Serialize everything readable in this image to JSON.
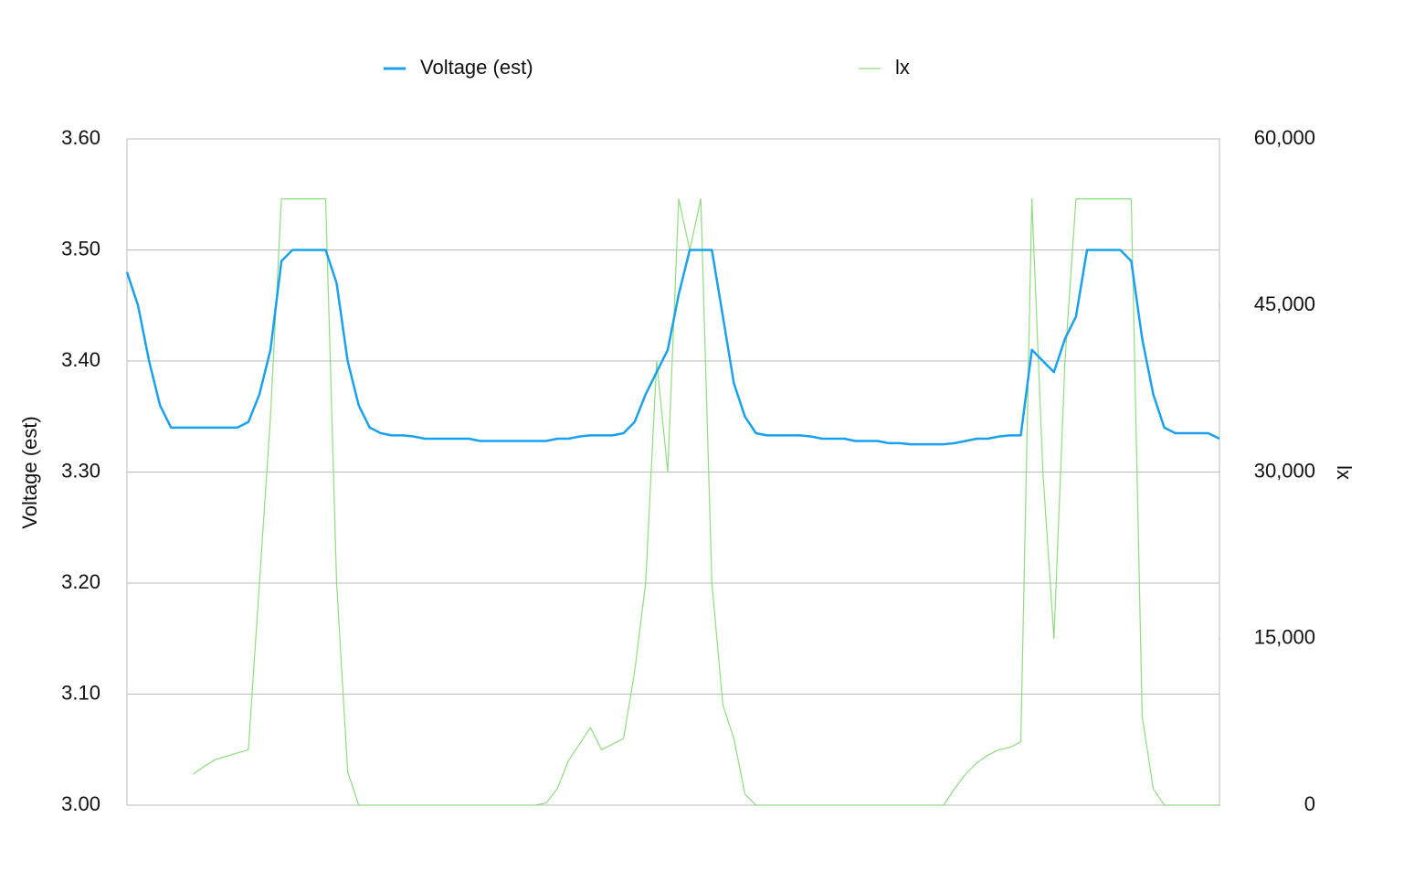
{
  "chart_data": {
    "type": "line",
    "y_label": "Voltage (est)",
    "y2_label": "lx",
    "categories": [
      null,
      null,
      null,
      null,
      null,
      null,
      null,
      null,
      null,
      null,
      null,
      null,
      null,
      null,
      null,
      null,
      null,
      null,
      null,
      null,
      null,
      null,
      null,
      null,
      null,
      null,
      null,
      null,
      null,
      null,
      null,
      null,
      null,
      null,
      null,
      null,
      null,
      null,
      null,
      null,
      null,
      null,
      null,
      null,
      null,
      null,
      null,
      null,
      null,
      null,
      null,
      null,
      null,
      null,
      null,
      null,
      null,
      null,
      null,
      null,
      null,
      null,
      null,
      null,
      null,
      null,
      null,
      null,
      null,
      null,
      null,
      null,
      null,
      null,
      null,
      null,
      null,
      null,
      null,
      null,
      null,
      null,
      null,
      null,
      null,
      null,
      null,
      null,
      null,
      null,
      null,
      null,
      null,
      null,
      null,
      null,
      null,
      null,
      null,
      null
    ],
    "series": [
      {
        "name": "Voltage (est)",
        "color": "#1aa1ee",
        "values": [
          3.48,
          3.45,
          3.4,
          3.36,
          3.34,
          3.34,
          3.34,
          3.34,
          3.34,
          3.34,
          3.34,
          3.345,
          3.37,
          3.41,
          3.49,
          3.5,
          3.5,
          3.5,
          3.5,
          3.47,
          3.4,
          3.36,
          3.34,
          3.335,
          3.333,
          3.333,
          3.332,
          3.33,
          3.33,
          3.33,
          3.33,
          3.33,
          3.328,
          3.328,
          3.328,
          3.328,
          3.328,
          3.328,
          3.328,
          3.33,
          3.33,
          3.332,
          3.333,
          3.333,
          3.333,
          3.335,
          3.345,
          3.37,
          3.39,
          3.41,
          3.46,
          3.5,
          3.5,
          3.5,
          3.44,
          3.38,
          3.35,
          3.335,
          3.333,
          3.333,
          3.333,
          3.333,
          3.332,
          3.33,
          3.33,
          3.33,
          3.328,
          3.328,
          3.328,
          3.326,
          3.326,
          3.325,
          3.325,
          3.325,
          3.325,
          3.326,
          3.328,
          3.33,
          3.33,
          3.332,
          3.333,
          3.333,
          3.41,
          3.4,
          3.39,
          3.42,
          3.44,
          3.5,
          3.5,
          3.5,
          3.5,
          3.49,
          3.42,
          3.37,
          3.34,
          3.335,
          3.335,
          3.335,
          3.335,
          3.33
        ]
      },
      {
        "name": "lx",
        "color": "#8fdc7f",
        "axis": "y2",
        "values": [
          null,
          null,
          null,
          null,
          null,
          null,
          2800,
          3500,
          4100,
          4400,
          4700,
          5000,
          20000,
          35000,
          54600,
          54600,
          54600,
          54600,
          54600,
          20000,
          3000,
          0,
          0,
          0,
          0,
          0,
          0,
          0,
          0,
          0,
          0,
          0,
          0,
          0,
          0,
          0,
          0,
          0,
          200,
          1500,
          4000,
          5500,
          7000,
          5000,
          5500,
          6000,
          12000,
          20000,
          40000,
          30000,
          54600,
          50000,
          54600,
          20000,
          9000,
          6000,
          1000,
          0,
          0,
          0,
          0,
          0,
          0,
          0,
          0,
          0,
          0,
          0,
          0,
          0,
          0,
          0,
          0,
          0,
          0,
          1500,
          2800,
          3800,
          4500,
          5000,
          5200,
          5700,
          54600,
          30000,
          15000,
          40000,
          54600,
          54600,
          54600,
          54600,
          54600,
          54600,
          8000,
          1500,
          0,
          0,
          0,
          0,
          0,
          0
        ]
      }
    ],
    "ylim": [
      3.0,
      3.6
    ],
    "yticks": [
      {
        "value": 3.0,
        "label": "3.00"
      },
      {
        "value": 3.1,
        "label": "3.10"
      },
      {
        "value": 3.2,
        "label": "3.20"
      },
      {
        "value": 3.3,
        "label": "3.30"
      },
      {
        "value": 3.4,
        "label": "3.40"
      },
      {
        "value": 3.5,
        "label": "3.50"
      },
      {
        "value": 3.6,
        "label": "3.60"
      }
    ],
    "y2lim": [
      0,
      60000
    ],
    "y2ticks": [
      0,
      {
        "value": 15000,
        "label": "15,000"
      },
      {
        "value": 30000,
        "label": "30,000"
      },
      {
        "value": 45000,
        "label": "45,000"
      },
      {
        "value": 60000,
        "label": "60,000"
      }
    ],
    "grid": true,
    "legend": "top"
  }
}
